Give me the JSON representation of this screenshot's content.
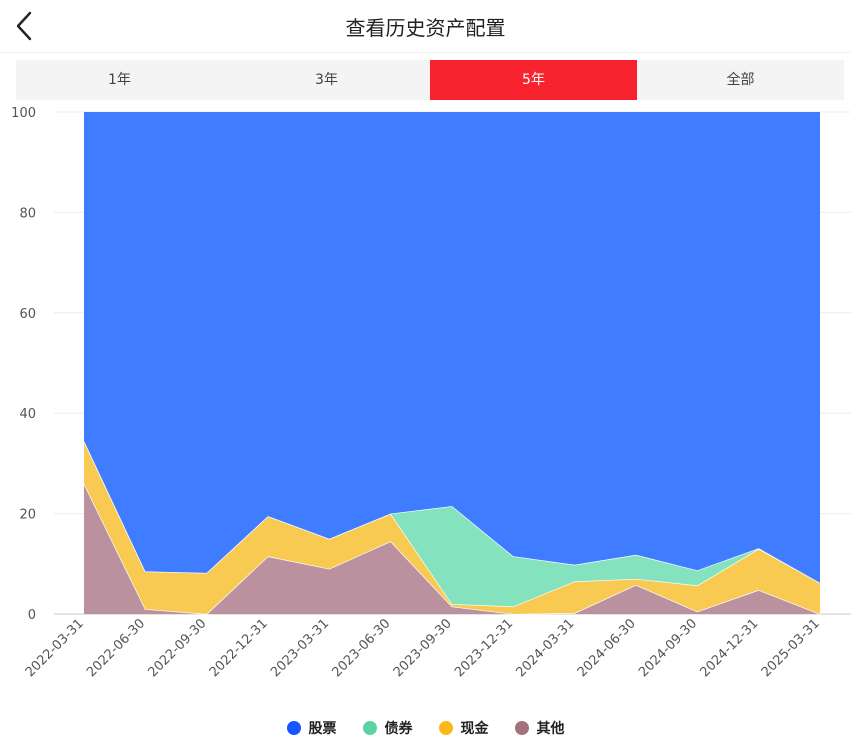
{
  "header": {
    "title": "查看历史资产配置",
    "back_icon": "chevron-left-icon"
  },
  "tabs": [
    {
      "label": "1年",
      "active": false
    },
    {
      "label": "3年",
      "active": false
    },
    {
      "label": "5年",
      "active": true
    },
    {
      "label": "全部",
      "active": false
    }
  ],
  "colors": {
    "active_tab": "#f7242f",
    "stock": "#3f7cff",
    "bond": "#84e2be",
    "cash": "#f8ca52",
    "other": "#bc919f",
    "legend_stock": "#1455ff",
    "legend_bond": "#5ad3a3",
    "legend_cash": "#f8b919",
    "legend_other": "#a4717f"
  },
  "chart_data": {
    "type": "area",
    "stacked": true,
    "categories": [
      "2022-03-31",
      "2022-06-30",
      "2022-09-30",
      "2022-12-31",
      "2023-03-31",
      "2023-06-30",
      "2023-09-30",
      "2023-12-31",
      "2024-03-31",
      "2024-06-30",
      "2024-09-30",
      "2024-12-31",
      "2025-03-31"
    ],
    "series": [
      {
        "name": "其他",
        "values": [
          26,
          1,
          0,
          11.5,
          9,
          14.5,
          1.5,
          0,
          0.2,
          5.8,
          0.5,
          4.8,
          0
        ]
      },
      {
        "name": "现金",
        "values": [
          8.5,
          7.5,
          8.2,
          8,
          6,
          5.5,
          0.5,
          1.5,
          6.3,
          1.2,
          5.2,
          8.2,
          6.2
        ]
      },
      {
        "name": "债券",
        "values": [
          0,
          0,
          0,
          0,
          0,
          0,
          19.5,
          10,
          3.3,
          4.8,
          3,
          0.1,
          0
        ]
      },
      {
        "name": "股票",
        "values": [
          65.5,
          91.5,
          91.8,
          80.5,
          85,
          80,
          78.5,
          88.5,
          90.2,
          88.2,
          91.3,
          86.9,
          93.8
        ]
      }
    ],
    "legend": [
      "股票",
      "债券",
      "现金",
      "其他"
    ],
    "ylim": [
      0,
      100
    ],
    "yticks": [
      0,
      20,
      40,
      60,
      80,
      100
    ],
    "grid": true,
    "legend_position": "bottom"
  }
}
